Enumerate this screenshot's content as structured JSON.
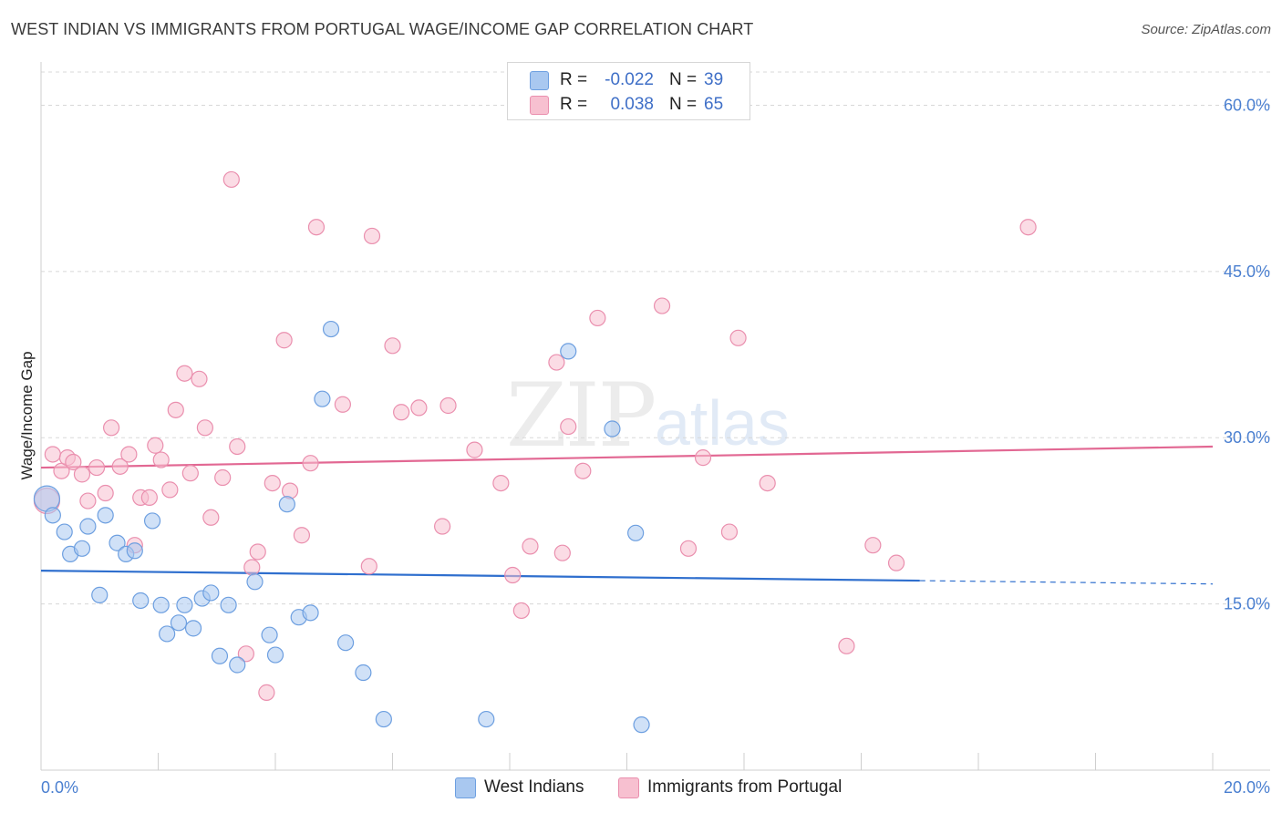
{
  "title": "WEST INDIAN VS IMMIGRANTS FROM PORTUGAL WAGE/INCOME GAP CORRELATION CHART",
  "source": "Source: ZipAtlas.com",
  "watermark": {
    "zip": "ZIP",
    "atlas": "atlas"
  },
  "legend": {
    "rows": [
      {
        "r_label": "R =",
        "r_value": "-0.022",
        "n_label": "N =",
        "n_value": "39"
      },
      {
        "r_label": "R =",
        "r_value": "0.038",
        "n_label": "N =",
        "n_value": "65"
      }
    ]
  },
  "colors": {
    "blue_fill": "#a9c8f0",
    "blue_stroke": "#6d9fe0",
    "blue_line": "#2f6fce",
    "pink_fill": "#f7c0d0",
    "pink_stroke": "#ea8fae",
    "pink_line": "#e26893",
    "grid": "#d8d8d8",
    "tick": "#4a7fd0"
  },
  "chart_data": {
    "type": "scatter",
    "title": "WEST INDIAN VS IMMIGRANTS FROM PORTUGAL WAGE/INCOME GAP CORRELATION CHART",
    "xlabel": "",
    "ylabel": "Wage/Income Gap",
    "xlim": [
      0,
      20
    ],
    "ylim": [
      0,
      63
    ],
    "x_tick_labels": [
      "0.0%",
      "20.0%"
    ],
    "y_ticks": [
      15,
      30,
      45,
      60
    ],
    "y_tick_labels": [
      "15.0%",
      "30.0%",
      "45.0%",
      "60.0%"
    ],
    "grid": true,
    "series": [
      {
        "name": "West Indians",
        "r": -0.022,
        "n": 39,
        "trend": {
          "x0": 0,
          "y0": 18.0,
          "x1": 15.0,
          "y1": 17.1,
          "dash_to_x": 20,
          "dash_to_y": 16.8
        },
        "points": [
          [
            0.1,
            24.5
          ],
          [
            0.2,
            23.0
          ],
          [
            0.4,
            21.5
          ],
          [
            0.5,
            19.5
          ],
          [
            0.7,
            20.0
          ],
          [
            0.8,
            22.0
          ],
          [
            1.1,
            23.0
          ],
          [
            1.3,
            20.5
          ],
          [
            1.45,
            19.5
          ],
          [
            1.6,
            19.8
          ],
          [
            1.9,
            22.5
          ],
          [
            1.0,
            15.8
          ],
          [
            1.7,
            15.3
          ],
          [
            2.05,
            14.9
          ],
          [
            2.15,
            12.3
          ],
          [
            2.35,
            13.3
          ],
          [
            2.45,
            14.9
          ],
          [
            2.6,
            12.8
          ],
          [
            2.75,
            15.5
          ],
          [
            2.9,
            16.0
          ],
          [
            3.05,
            10.3
          ],
          [
            3.2,
            14.9
          ],
          [
            3.35,
            9.5
          ],
          [
            3.65,
            17.0
          ],
          [
            3.9,
            12.2
          ],
          [
            4.0,
            10.4
          ],
          [
            4.2,
            24.0
          ],
          [
            4.4,
            13.8
          ],
          [
            4.6,
            14.2
          ],
          [
            4.8,
            33.5
          ],
          [
            4.95,
            39.8
          ],
          [
            5.2,
            11.5
          ],
          [
            5.5,
            8.8
          ],
          [
            5.85,
            4.6
          ],
          [
            7.6,
            4.6
          ],
          [
            9.0,
            37.8
          ],
          [
            9.75,
            30.8
          ],
          [
            10.15,
            21.4
          ],
          [
            10.25,
            4.1
          ]
        ]
      },
      {
        "name": "Immigrants from Portugal",
        "r": 0.038,
        "n": 65,
        "trend": {
          "x0": 0,
          "y0": 27.3,
          "x1": 20,
          "y1": 29.2
        },
        "points": [
          [
            0.1,
            24.3
          ],
          [
            0.2,
            28.5
          ],
          [
            0.35,
            27.0
          ],
          [
            0.45,
            28.2
          ],
          [
            0.55,
            27.8
          ],
          [
            0.7,
            26.7
          ],
          [
            0.8,
            24.3
          ],
          [
            0.95,
            27.3
          ],
          [
            1.1,
            25.0
          ],
          [
            1.2,
            30.9
          ],
          [
            1.35,
            27.4
          ],
          [
            1.5,
            28.5
          ],
          [
            1.6,
            20.3
          ],
          [
            1.7,
            24.6
          ],
          [
            1.85,
            24.6
          ],
          [
            1.95,
            29.3
          ],
          [
            2.05,
            28.0
          ],
          [
            2.2,
            25.3
          ],
          [
            2.3,
            32.5
          ],
          [
            2.45,
            35.8
          ],
          [
            2.55,
            26.8
          ],
          [
            2.7,
            35.3
          ],
          [
            2.8,
            30.9
          ],
          [
            2.9,
            22.8
          ],
          [
            3.1,
            26.4
          ],
          [
            3.25,
            53.3
          ],
          [
            3.35,
            29.2
          ],
          [
            3.5,
            10.5
          ],
          [
            3.6,
            18.3
          ],
          [
            3.7,
            19.7
          ],
          [
            3.85,
            7.0
          ],
          [
            3.95,
            25.9
          ],
          [
            4.15,
            38.8
          ],
          [
            4.25,
            25.2
          ],
          [
            4.45,
            21.2
          ],
          [
            4.6,
            27.7
          ],
          [
            4.7,
            49.0
          ],
          [
            5.15,
            33.0
          ],
          [
            5.6,
            18.4
          ],
          [
            5.65,
            48.2
          ],
          [
            6.0,
            38.3
          ],
          [
            6.15,
            32.3
          ],
          [
            6.45,
            32.7
          ],
          [
            6.85,
            22.0
          ],
          [
            6.95,
            32.9
          ],
          [
            7.4,
            28.9
          ],
          [
            7.85,
            25.9
          ],
          [
            8.05,
            17.6
          ],
          [
            8.2,
            14.4
          ],
          [
            8.35,
            20.2
          ],
          [
            8.8,
            36.8
          ],
          [
            8.9,
            19.6
          ],
          [
            9.0,
            31.0
          ],
          [
            9.25,
            27.0
          ],
          [
            9.5,
            40.8
          ],
          [
            10.6,
            41.9
          ],
          [
            11.05,
            20.0
          ],
          [
            11.3,
            28.2
          ],
          [
            11.75,
            21.5
          ],
          [
            11.9,
            39.0
          ],
          [
            12.4,
            25.9
          ],
          [
            13.75,
            11.2
          ],
          [
            14.2,
            20.3
          ],
          [
            14.6,
            18.7
          ],
          [
            16.85,
            49.0
          ]
        ]
      }
    ]
  },
  "bottom_legend": {
    "items": [
      "West Indians",
      "Immigrants from Portugal"
    ]
  }
}
